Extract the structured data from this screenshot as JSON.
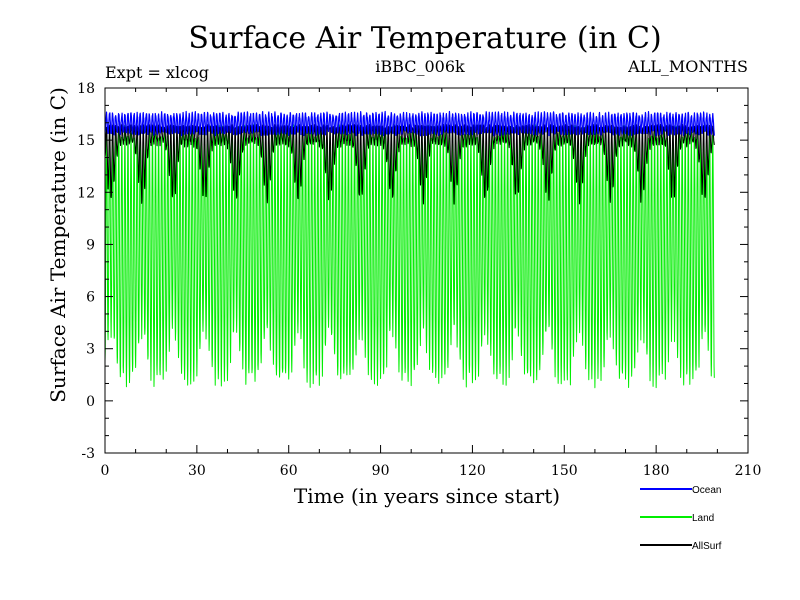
{
  "chart_data": {
    "type": "line",
    "title": "Surface Air Temperature (in C)",
    "subtitle_left": "Expt = xlcog",
    "subtitle_center": "iBBC_006k",
    "subtitle_right": "ALL_MONTHS",
    "xlabel": "Time (in years since start)",
    "ylabel": "Surface Air Temperature (in C)",
    "xlim": [
      0,
      210
    ],
    "ylim": [
      -3,
      18
    ],
    "x_ticks": [
      "0",
      "30",
      "60",
      "90",
      "120",
      "150",
      "180",
      "210"
    ],
    "y_ticks": [
      "-3",
      "0",
      "3",
      "6",
      "9",
      "12",
      "15",
      "18"
    ],
    "x_range_years": [
      0,
      199
    ],
    "sampling": "monthly",
    "series": [
      {
        "name": "Ocean",
        "color": "#0000ff",
        "seasonal_min": 15.4,
        "seasonal_max": 16.5,
        "description": "narrow band ~15.3-16.9"
      },
      {
        "name": "Land",
        "color": "#00ee00",
        "seasonal_min": 1.2,
        "seasonal_max": 15.8,
        "min_peaks": 4.0,
        "description": "large seasonal oscillation ~-0.3 to ~16.9"
      },
      {
        "name": "AllSurf",
        "color": "#000000",
        "seasonal_min": 14.8,
        "seasonal_max": 15.8,
        "min_dips": 11.5,
        "description": "band ~14.8-15.9 with dips to ~11.5 every ~10 years"
      }
    ],
    "legend": [
      {
        "label": "Ocean",
        "color": "#0000ff"
      },
      {
        "label": "Land",
        "color": "#00ee00"
      },
      {
        "label": "AllSurf",
        "color": "#000000"
      }
    ]
  }
}
